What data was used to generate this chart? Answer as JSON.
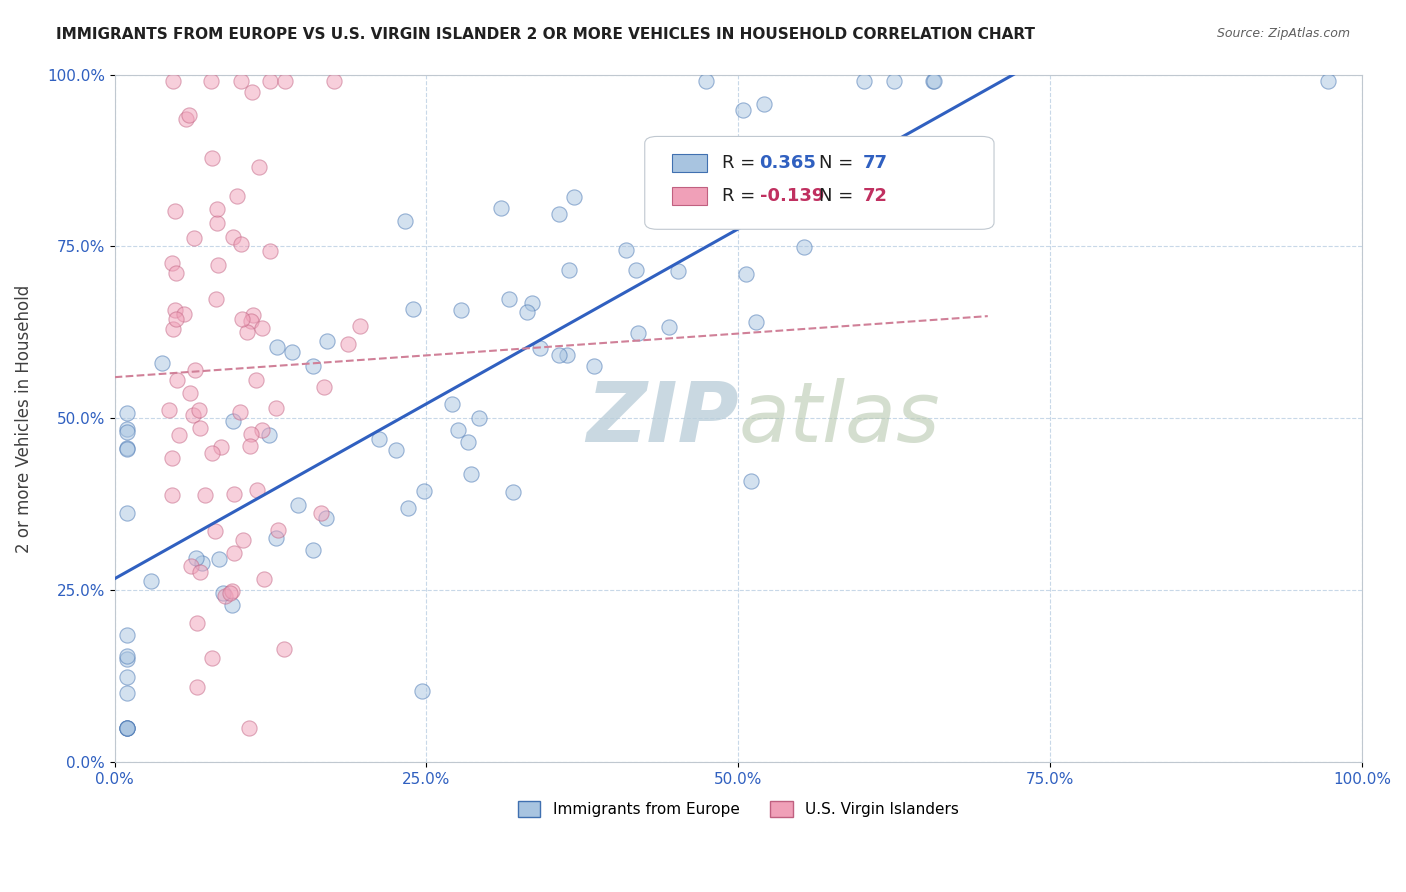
{
  "title": "IMMIGRANTS FROM EUROPE VS U.S. VIRGIN ISLANDER 2 OR MORE VEHICLES IN HOUSEHOLD CORRELATION CHART",
  "source": "Source: ZipAtlas.com",
  "ylabel": "2 or more Vehicles in Household",
  "watermark_zip": "ZIP",
  "watermark_atlas": "atlas",
  "blue_label": "Immigrants from Europe",
  "pink_label": "U.S. Virgin Islanders",
  "blue_R": 0.365,
  "blue_N": 77,
  "pink_R": -0.139,
  "pink_N": 72,
  "blue_color": "#a8c4e0",
  "pink_color": "#f0a0b8",
  "blue_line_color": "#3060c0",
  "pink_line_color": "#d08098",
  "blue_edge_color": "#4070b0",
  "pink_edge_color": "#c06080",
  "xlim": [
    0,
    1
  ],
  "ylim": [
    0,
    1
  ],
  "xticks": [
    0,
    0.25,
    0.5,
    0.75,
    1.0
  ],
  "yticks": [
    0,
    0.25,
    0.5,
    0.75,
    1.0
  ],
  "xtick_labels": [
    "0.0%",
    "25.0%",
    "50.0%",
    "75.0%",
    "100.0%"
  ],
  "ytick_labels": [
    "0.0%",
    "25.0%",
    "50.0%",
    "75.0%",
    "100.0%"
  ],
  "marker_size": 120,
  "alpha": 0.5,
  "legend_R_color_blue": "#3060c0",
  "legend_N_color_blue": "#3060c0",
  "legend_R_color_pink": "#c03060",
  "legend_N_color_pink": "#c03060"
}
